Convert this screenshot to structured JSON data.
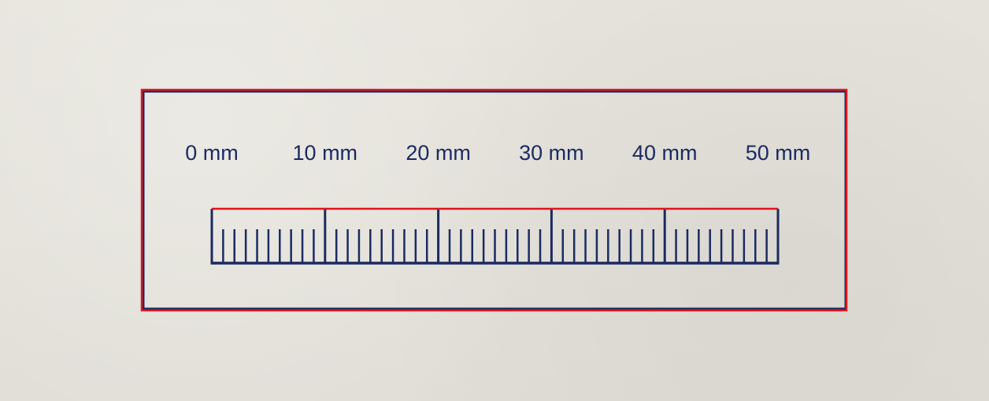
{
  "scale": {
    "labels": [
      "0 mm",
      "10 mm",
      "20 mm",
      "30 mm",
      "40 mm",
      "50 mm"
    ],
    "range_mm": [
      0,
      50
    ],
    "major_step_mm": 10,
    "minor_step_mm": 1,
    "tick_color": "#1b2a61",
    "frame_color": "#1b2a61",
    "highlight_color": "#e0141e"
  }
}
